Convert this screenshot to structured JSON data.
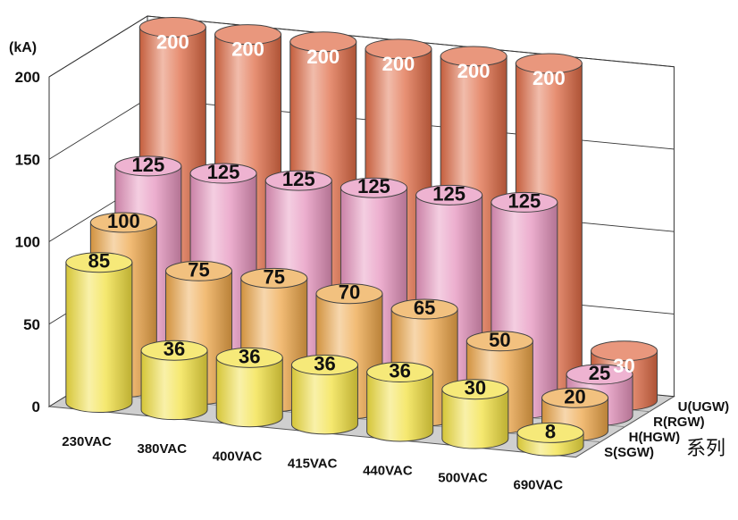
{
  "chart_data": {
    "type": "bar",
    "subtype": "3d-cylinder-grouped",
    "title": "",
    "ylabel": "(kA)",
    "ylim": [
      0,
      200
    ],
    "yticks": [
      "0",
      "50",
      "100",
      "150",
      "200"
    ],
    "categories": [
      "230VAC",
      "380VAC",
      "400VAC",
      "415VAC",
      "440VAC",
      "500VAC",
      "690VAC"
    ],
    "series_axis_suffix": "系列",
    "series": [
      {
        "name": "S(SGW)",
        "color": "#f2e040",
        "values": [
          85,
          36,
          36,
          36,
          36,
          30,
          8
        ]
      },
      {
        "name": "H(HGW)",
        "color": "#eda648",
        "values": [
          100,
          75,
          75,
          70,
          65,
          50,
          20
        ]
      },
      {
        "name": "R(RGW)",
        "color": "#e693bd",
        "values": [
          125,
          125,
          125,
          125,
          125,
          125,
          25
        ]
      },
      {
        "name": "U(UGW)",
        "color": "#df6b45",
        "values": [
          200,
          200,
          200,
          200,
          200,
          200,
          30
        ]
      }
    ],
    "grid": true
  }
}
